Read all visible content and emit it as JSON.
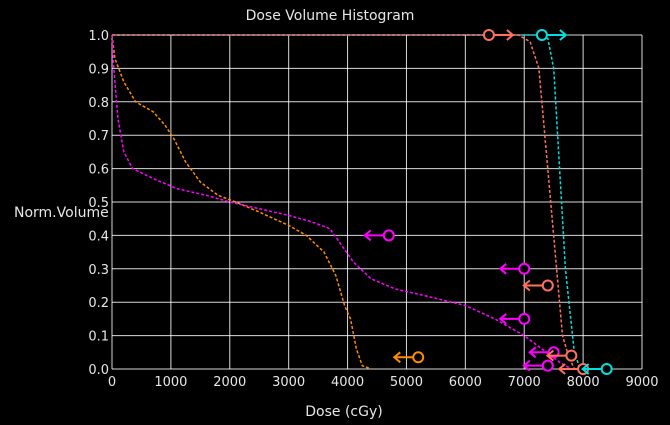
{
  "chart_data": {
    "type": "line",
    "title": "Dose Volume Histogram",
    "xlabel": "Dose (cGy)",
    "ylabel": "Norm.Volume",
    "xlim": [
      0,
      9000
    ],
    "ylim": [
      0,
      1.0
    ],
    "grid": true,
    "background": "#000000",
    "grid_color": "#ffffff",
    "x_ticks": [
      0,
      1000,
      2000,
      3000,
      4000,
      5000,
      6000,
      7000,
      8000,
      9000
    ],
    "y_ticks": [
      0.0,
      0.1,
      0.2,
      0.3,
      0.4,
      0.5,
      0.6,
      0.7,
      0.8,
      0.9,
      1.0
    ],
    "x_tick_labels": [
      "0",
      "1000",
      "2000",
      "3000",
      "4000",
      "5000",
      "6000",
      "7000",
      "8000",
      "9000"
    ],
    "y_tick_labels": [
      "0.0",
      "0.1",
      "0.2",
      "0.3",
      "0.4",
      "0.5",
      "0.6",
      "0.7",
      "0.8",
      "0.9",
      "1.0"
    ],
    "series": [
      {
        "color": "#00e0e0",
        "points": [
          [
            0,
            1.0
          ],
          [
            7200,
            1.0
          ],
          [
            7400,
            0.99
          ],
          [
            7500,
            0.9
          ],
          [
            7600,
            0.6
          ],
          [
            7700,
            0.3
          ],
          [
            7850,
            0.05
          ],
          [
            7950,
            0.0
          ]
        ]
      },
      {
        "color": "#ff7060",
        "points": [
          [
            0,
            1.0
          ],
          [
            6900,
            1.0
          ],
          [
            7100,
            0.98
          ],
          [
            7250,
            0.9
          ],
          [
            7350,
            0.7
          ],
          [
            7450,
            0.5
          ],
          [
            7550,
            0.3
          ],
          [
            7650,
            0.1
          ],
          [
            7750,
            0.04
          ],
          [
            7850,
            0.0
          ]
        ]
      },
      {
        "color": "#ff8c00",
        "points": [
          [
            0,
            1.0
          ],
          [
            50,
            0.93
          ],
          [
            200,
            0.86
          ],
          [
            400,
            0.8
          ],
          [
            700,
            0.77
          ],
          [
            900,
            0.73
          ],
          [
            1050,
            0.69
          ],
          [
            1250,
            0.62
          ],
          [
            1500,
            0.56
          ],
          [
            1800,
            0.52
          ],
          [
            2100,
            0.5
          ],
          [
            2500,
            0.47
          ],
          [
            3000,
            0.43
          ],
          [
            3300,
            0.4
          ],
          [
            3600,
            0.35
          ],
          [
            3800,
            0.28
          ],
          [
            3950,
            0.19
          ],
          [
            4050,
            0.15
          ],
          [
            4150,
            0.06
          ],
          [
            4250,
            0.01
          ],
          [
            4400,
            0.0
          ]
        ]
      },
      {
        "color": "#ff00ff",
        "points": [
          [
            0,
            1.0
          ],
          [
            30,
            0.9
          ],
          [
            100,
            0.75
          ],
          [
            200,
            0.65
          ],
          [
            350,
            0.6
          ],
          [
            700,
            0.57
          ],
          [
            1100,
            0.54
          ],
          [
            1600,
            0.52
          ],
          [
            2000,
            0.5
          ],
          [
            2500,
            0.48
          ],
          [
            3000,
            0.46
          ],
          [
            3400,
            0.44
          ],
          [
            3700,
            0.42
          ],
          [
            3900,
            0.37
          ],
          [
            4100,
            0.32
          ],
          [
            4400,
            0.27
          ],
          [
            4800,
            0.24
          ],
          [
            5300,
            0.22
          ],
          [
            6000,
            0.19
          ],
          [
            6500,
            0.15
          ],
          [
            7000,
            0.1
          ],
          [
            7300,
            0.06
          ],
          [
            7600,
            0.02
          ],
          [
            7800,
            0.0
          ]
        ]
      }
    ],
    "markers": [
      {
        "x": 6400,
        "y": 1.0,
        "color": "#ff7060",
        "direction": "right"
      },
      {
        "x": 7300,
        "y": 1.0,
        "color": "#00e0e0",
        "direction": "right"
      },
      {
        "x": 4700,
        "y": 0.4,
        "color": "#ff00ff",
        "direction": "left"
      },
      {
        "x": 7000,
        "y": 0.3,
        "color": "#ff00ff",
        "direction": "left"
      },
      {
        "x": 7400,
        "y": 0.25,
        "color": "#ff7060",
        "direction": "left"
      },
      {
        "x": 7000,
        "y": 0.15,
        "color": "#ff00ff",
        "direction": "left"
      },
      {
        "x": 7500,
        "y": 0.05,
        "color": "#ff00ff",
        "direction": "left"
      },
      {
        "x": 7800,
        "y": 0.04,
        "color": "#ff7060",
        "direction": "left"
      },
      {
        "x": 5200,
        "y": 0.035,
        "color": "#ff8c00",
        "direction": "left"
      },
      {
        "x": 7400,
        "y": 0.01,
        "color": "#ff00ff",
        "direction": "left"
      },
      {
        "x": 8000,
        "y": 0.0,
        "color": "#ff7060",
        "direction": "left"
      },
      {
        "x": 8400,
        "y": 0.0,
        "color": "#00e0e0",
        "direction": "left"
      }
    ]
  }
}
